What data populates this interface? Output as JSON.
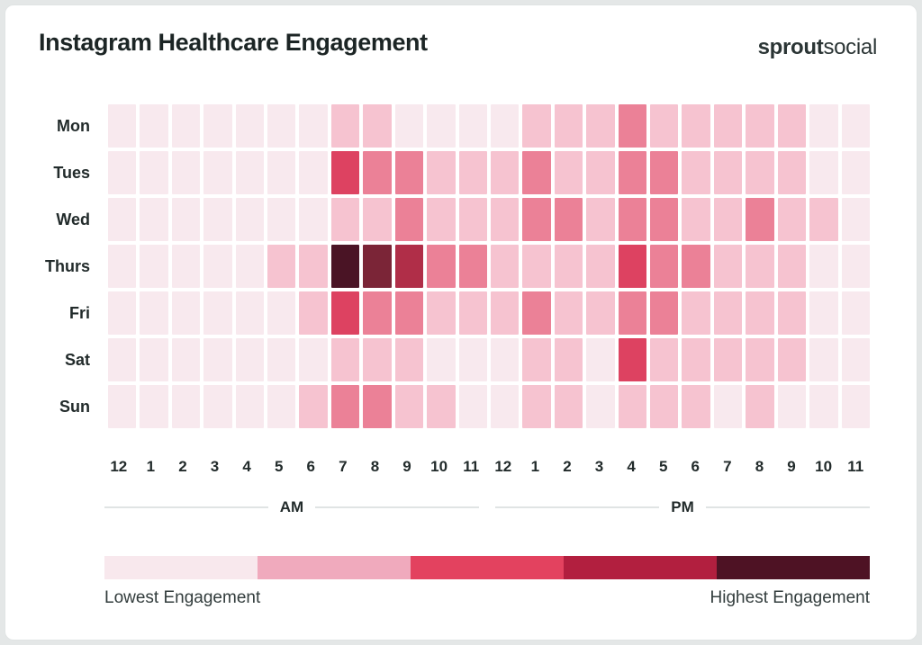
{
  "brand": {
    "bold": "sprout",
    "light": "social"
  },
  "chart_data": {
    "type": "heatmap",
    "title": "Instagram Healthcare Engagement",
    "rows": [
      "Mon",
      "Tues",
      "Wed",
      "Thurs",
      "Fri",
      "Sat",
      "Sun"
    ],
    "columns": [
      "12",
      "1",
      "2",
      "3",
      "4",
      "5",
      "6",
      "7",
      "8",
      "9",
      "10",
      "11",
      "12",
      "1",
      "2",
      "3",
      "4",
      "5",
      "6",
      "7",
      "8",
      "9",
      "10",
      "11"
    ],
    "column_groups": [
      {
        "label": "AM",
        "span": 12
      },
      {
        "label": "PM",
        "span": 12
      }
    ],
    "value_scale": "relative engagement level, 0 = lowest to 6 = highest",
    "values": [
      [
        0,
        0,
        0,
        0,
        0,
        0,
        0,
        1,
        1,
        0,
        0,
        0,
        0,
        1,
        1,
        1,
        2,
        1,
        1,
        1,
        1,
        1,
        0,
        0
      ],
      [
        0,
        0,
        0,
        0,
        0,
        0,
        0,
        3,
        2,
        2,
        1,
        1,
        1,
        2,
        1,
        1,
        2,
        2,
        1,
        1,
        1,
        1,
        0,
        0
      ],
      [
        0,
        0,
        0,
        0,
        0,
        0,
        0,
        1,
        1,
        2,
        1,
        1,
        1,
        2,
        2,
        1,
        2,
        2,
        1,
        1,
        2,
        1,
        1,
        0
      ],
      [
        0,
        0,
        0,
        0,
        0,
        1,
        1,
        6,
        5,
        4,
        2,
        2,
        1,
        1,
        1,
        1,
        3,
        2,
        2,
        1,
        1,
        1,
        0,
        0
      ],
      [
        0,
        0,
        0,
        0,
        0,
        0,
        1,
        3,
        2,
        2,
        1,
        1,
        1,
        2,
        1,
        1,
        2,
        2,
        1,
        1,
        1,
        1,
        0,
        0
      ],
      [
        0,
        0,
        0,
        0,
        0,
        0,
        0,
        1,
        1,
        1,
        0,
        0,
        0,
        1,
        1,
        0,
        3,
        1,
        1,
        1,
        1,
        1,
        0,
        0
      ],
      [
        0,
        0,
        0,
        0,
        0,
        0,
        1,
        2,
        2,
        1,
        1,
        0,
        0,
        1,
        1,
        0,
        1,
        1,
        1,
        0,
        1,
        0,
        0,
        0
      ]
    ],
    "palette": [
      "#f8e9ee",
      "#f6c3d0",
      "#eb8197",
      "#dd4261",
      "#b02e48",
      "#7b2537",
      "#4a1425"
    ],
    "legend": {
      "colors": [
        "#f8e8ed",
        "#f0aabd",
        "#e3425f",
        "#b21f3f",
        "#4e1224"
      ],
      "min_label": "Lowest Engagement",
      "max_label": "Highest Engagement"
    }
  }
}
